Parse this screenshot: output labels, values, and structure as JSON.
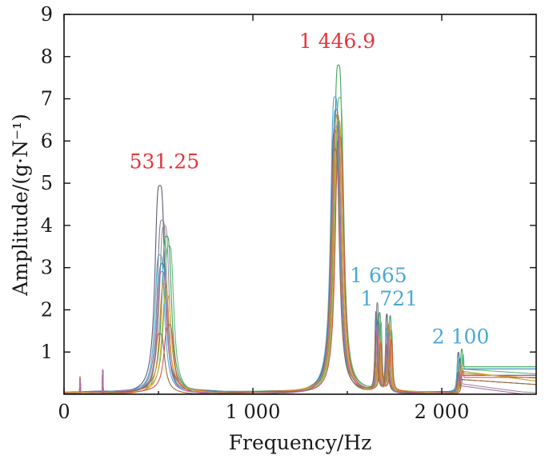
{
  "chart_data": {
    "type": "line",
    "title": "",
    "xlabel": "Frequency/Hz",
    "ylabel": "Amplitude/(g·N⁻¹)",
    "xlim": [
      0,
      2500
    ],
    "ylim": [
      0,
      9
    ],
    "x_ticks": [
      {
        "value": 0,
        "label": "0"
      },
      {
        "value": 1000,
        "label": "1 000"
      },
      {
        "value": 2000,
        "label": "2 000"
      }
    ],
    "y_ticks": [
      {
        "value": 1,
        "label": "1"
      },
      {
        "value": 2,
        "label": "2"
      },
      {
        "value": 3,
        "label": "3"
      },
      {
        "value": 4,
        "label": "4"
      },
      {
        "value": 5,
        "label": "5"
      },
      {
        "value": 6,
        "label": "6"
      },
      {
        "value": 7,
        "label": "7"
      },
      {
        "value": 8,
        "label": "8"
      },
      {
        "value": 9,
        "label": "9"
      }
    ],
    "grid": false,
    "legend": "none",
    "annotations": [
      {
        "text": "531.25",
        "x": 531.25,
        "y": 5.35,
        "color": "#e8343c"
      },
      {
        "text": "1 446.9",
        "x": 1446.9,
        "y": 8.2,
        "color": "#e8343c"
      },
      {
        "text": "1 665",
        "x": 1665,
        "y": 2.65,
        "color": "#4aa8d6"
      },
      {
        "text": "1 721",
        "x": 1721,
        "y": 2.1,
        "color": "#4aa8d6"
      },
      {
        "text": "2 100",
        "x": 2100,
        "y": 1.2,
        "color": "#4aa8d6"
      }
    ],
    "series": [
      {
        "color": "#5b5d70",
        "peaks": [
          4.95,
          6.2,
          1.9,
          1.85,
          0.95
        ],
        "tail": 0.45
      },
      {
        "color": "#7e7f8c",
        "peaks": [
          4.1,
          5.8,
          2.1,
          1.6,
          0.75
        ],
        "tail": 0.35
      },
      {
        "color": "#9a8fa0",
        "peaks": [
          3.95,
          6.6,
          1.7,
          1.55,
          0.6
        ],
        "tail": 0.25
      },
      {
        "color": "#3fa35a",
        "peaks": [
          3.7,
          7.8,
          1.8,
          1.75,
          1.05
        ],
        "tail": 0.65
      },
      {
        "color": "#5dbb7a",
        "peaks": [
          3.5,
          7.0,
          1.6,
          1.45,
          0.9
        ],
        "tail": 0.6
      },
      {
        "color": "#4aa8d6",
        "peaks": [
          3.3,
          7.0,
          1.5,
          1.5,
          0.85
        ],
        "tail": 0.55
      },
      {
        "color": "#2e88b0",
        "peaks": [
          3.1,
          6.7,
          1.65,
          1.4,
          0.8
        ],
        "tail": 0.6
      },
      {
        "color": "#d98a2b",
        "peaks": [
          2.6,
          6.6,
          1.3,
          1.6,
          0.7
        ],
        "tail": 0.5
      },
      {
        "color": "#c9b02f",
        "peaks": [
          2.3,
          6.5,
          1.2,
          1.3,
          0.65
        ],
        "tail": 0.55
      },
      {
        "color": "#d9534f",
        "peaks": [
          1.6,
          6.1,
          1.1,
          1.2,
          0.55
        ],
        "tail": 0.4
      },
      {
        "color": "#9b6b3b",
        "peaks": [
          1.4,
          5.8,
          1.4,
          1.1,
          0.5
        ],
        "tail": 0.35
      },
      {
        "color": "#b06fa8",
        "peaks": [
          2.9,
          6.3,
          1.55,
          1.35,
          0.45
        ],
        "tail": 0.2
      }
    ]
  }
}
